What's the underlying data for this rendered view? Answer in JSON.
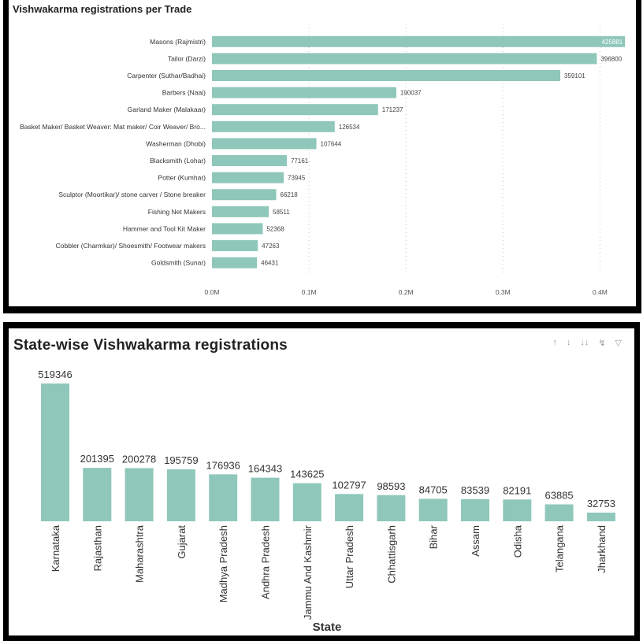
{
  "chart_data": [
    {
      "type": "bar",
      "orientation": "horizontal",
      "title": "Vishwakarma registrations per Trade",
      "categories": [
        "Masons (Rajmistri)",
        "Tailor (Darzi)",
        "Carpenter (Suthar/Badhai)",
        "Barbers (Naai)",
        "Garland Maker (Malakaar)",
        "Basket Maker/ Basket Weaver: Mat maker/ Coir Weaver/ Bro...",
        "Washerman (Dhobi)",
        "Blacksmith (Lohar)",
        "Potter (Kumhar)",
        "Sculptor (Moortikar)/ stone carver / Stone breaker",
        "Fishing Net Makers",
        "Hammer and Tool Kit Maker",
        "Cobbler (Charmkar)/ Shoesmith/ Footwear makers",
        "Goldsmith (Sunar)"
      ],
      "values": [
        425881,
        396800,
        359101,
        190037,
        171237,
        126534,
        107644,
        77161,
        73945,
        66218,
        58511,
        52368,
        47263,
        46431
      ],
      "value_labels": [
        "425881",
        "396800",
        "359101",
        "190037",
        "171237",
        "126534",
        "107644",
        "77161",
        "73945",
        "66218",
        "58511",
        "52368",
        "47263",
        "46431"
      ],
      "xlim": [
        0,
        420000
      ],
      "xticks": [
        0,
        100000,
        200000,
        300000,
        400000
      ],
      "xtick_labels": [
        "0.0M",
        "0.1M",
        "0.2M",
        "0.3M",
        "0.4M"
      ],
      "xlabel": "",
      "ylabel": "",
      "grid": "vertical dotted",
      "bar_color": "#8fc7bb"
    },
    {
      "type": "bar",
      "orientation": "vertical",
      "title": "State-wise Vishwakarma registrations",
      "categories": [
        "Karnataka",
        "Rajasthan",
        "Maharashtra",
        "Gujarat",
        "Madhya Pradesh",
        "Andhra Pradesh",
        "Jammu And Kashmir",
        "Uttar Pradesh",
        "Chhattisgarh",
        "Bihar",
        "Assam",
        "Odisha",
        "Telangana",
        "Jharkhand"
      ],
      "values": [
        519346,
        201395,
        200278,
        195759,
        176936,
        164343,
        143625,
        102797,
        98593,
        84705,
        83539,
        82191,
        63885,
        32753
      ],
      "value_labels": [
        "519346",
        "201395",
        "200278",
        "195759",
        "176936",
        "164343",
        "143625",
        "102797",
        "98593",
        "84705",
        "83539",
        "82191",
        "63885",
        "32753"
      ],
      "ylim": [
        0,
        519346
      ],
      "xlabel": "State",
      "ylabel": "",
      "grid": false,
      "bar_color": "#8fc7bb"
    }
  ],
  "toolbar_icons": [
    "pin-icon",
    "drill-down-icon",
    "expand-all-icon",
    "focus-icon",
    "filter-icon"
  ]
}
